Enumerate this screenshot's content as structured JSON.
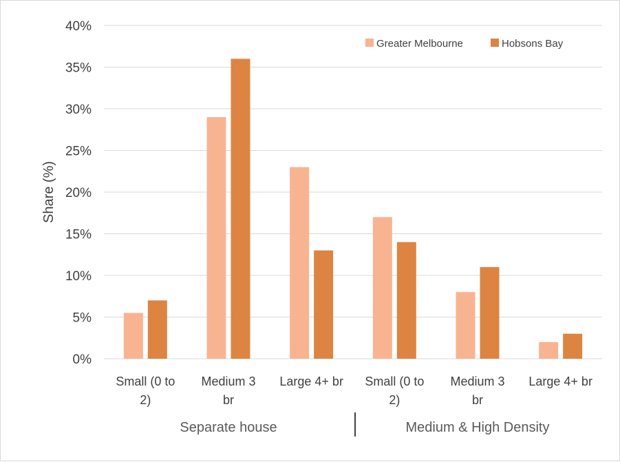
{
  "chart_data": {
    "type": "bar",
    "ylabel": "Share (%)",
    "xlabel": "",
    "ylim": [
      0,
      40
    ],
    "y_ticks": [
      "0%",
      "5%",
      "10%",
      "15%",
      "20%",
      "25%",
      "30%",
      "35%",
      "40%"
    ],
    "y_tick_values": [
      0,
      5,
      10,
      15,
      20,
      25,
      30,
      35,
      40
    ],
    "grid": true,
    "legend_position": "top-right",
    "categories": [
      [
        "Small (0 to",
        "2)"
      ],
      [
        "Medium 3",
        "br"
      ],
      [
        "Large 4+ br"
      ],
      [
        "Small (0 to",
        "2)"
      ],
      [
        "Medium 3",
        "br"
      ],
      [
        "Large 4+ br"
      ]
    ],
    "groups": [
      "Separate house",
      "Medium & High Density"
    ],
    "series": [
      {
        "name": "Greater Melbourne",
        "color": "#f8b491",
        "values": [
          5.5,
          29,
          23,
          17,
          8,
          2
        ]
      },
      {
        "name": "Hobsons Bay",
        "color": "#dd8442",
        "values": [
          7,
          36,
          13,
          14,
          11,
          3
        ]
      }
    ]
  }
}
